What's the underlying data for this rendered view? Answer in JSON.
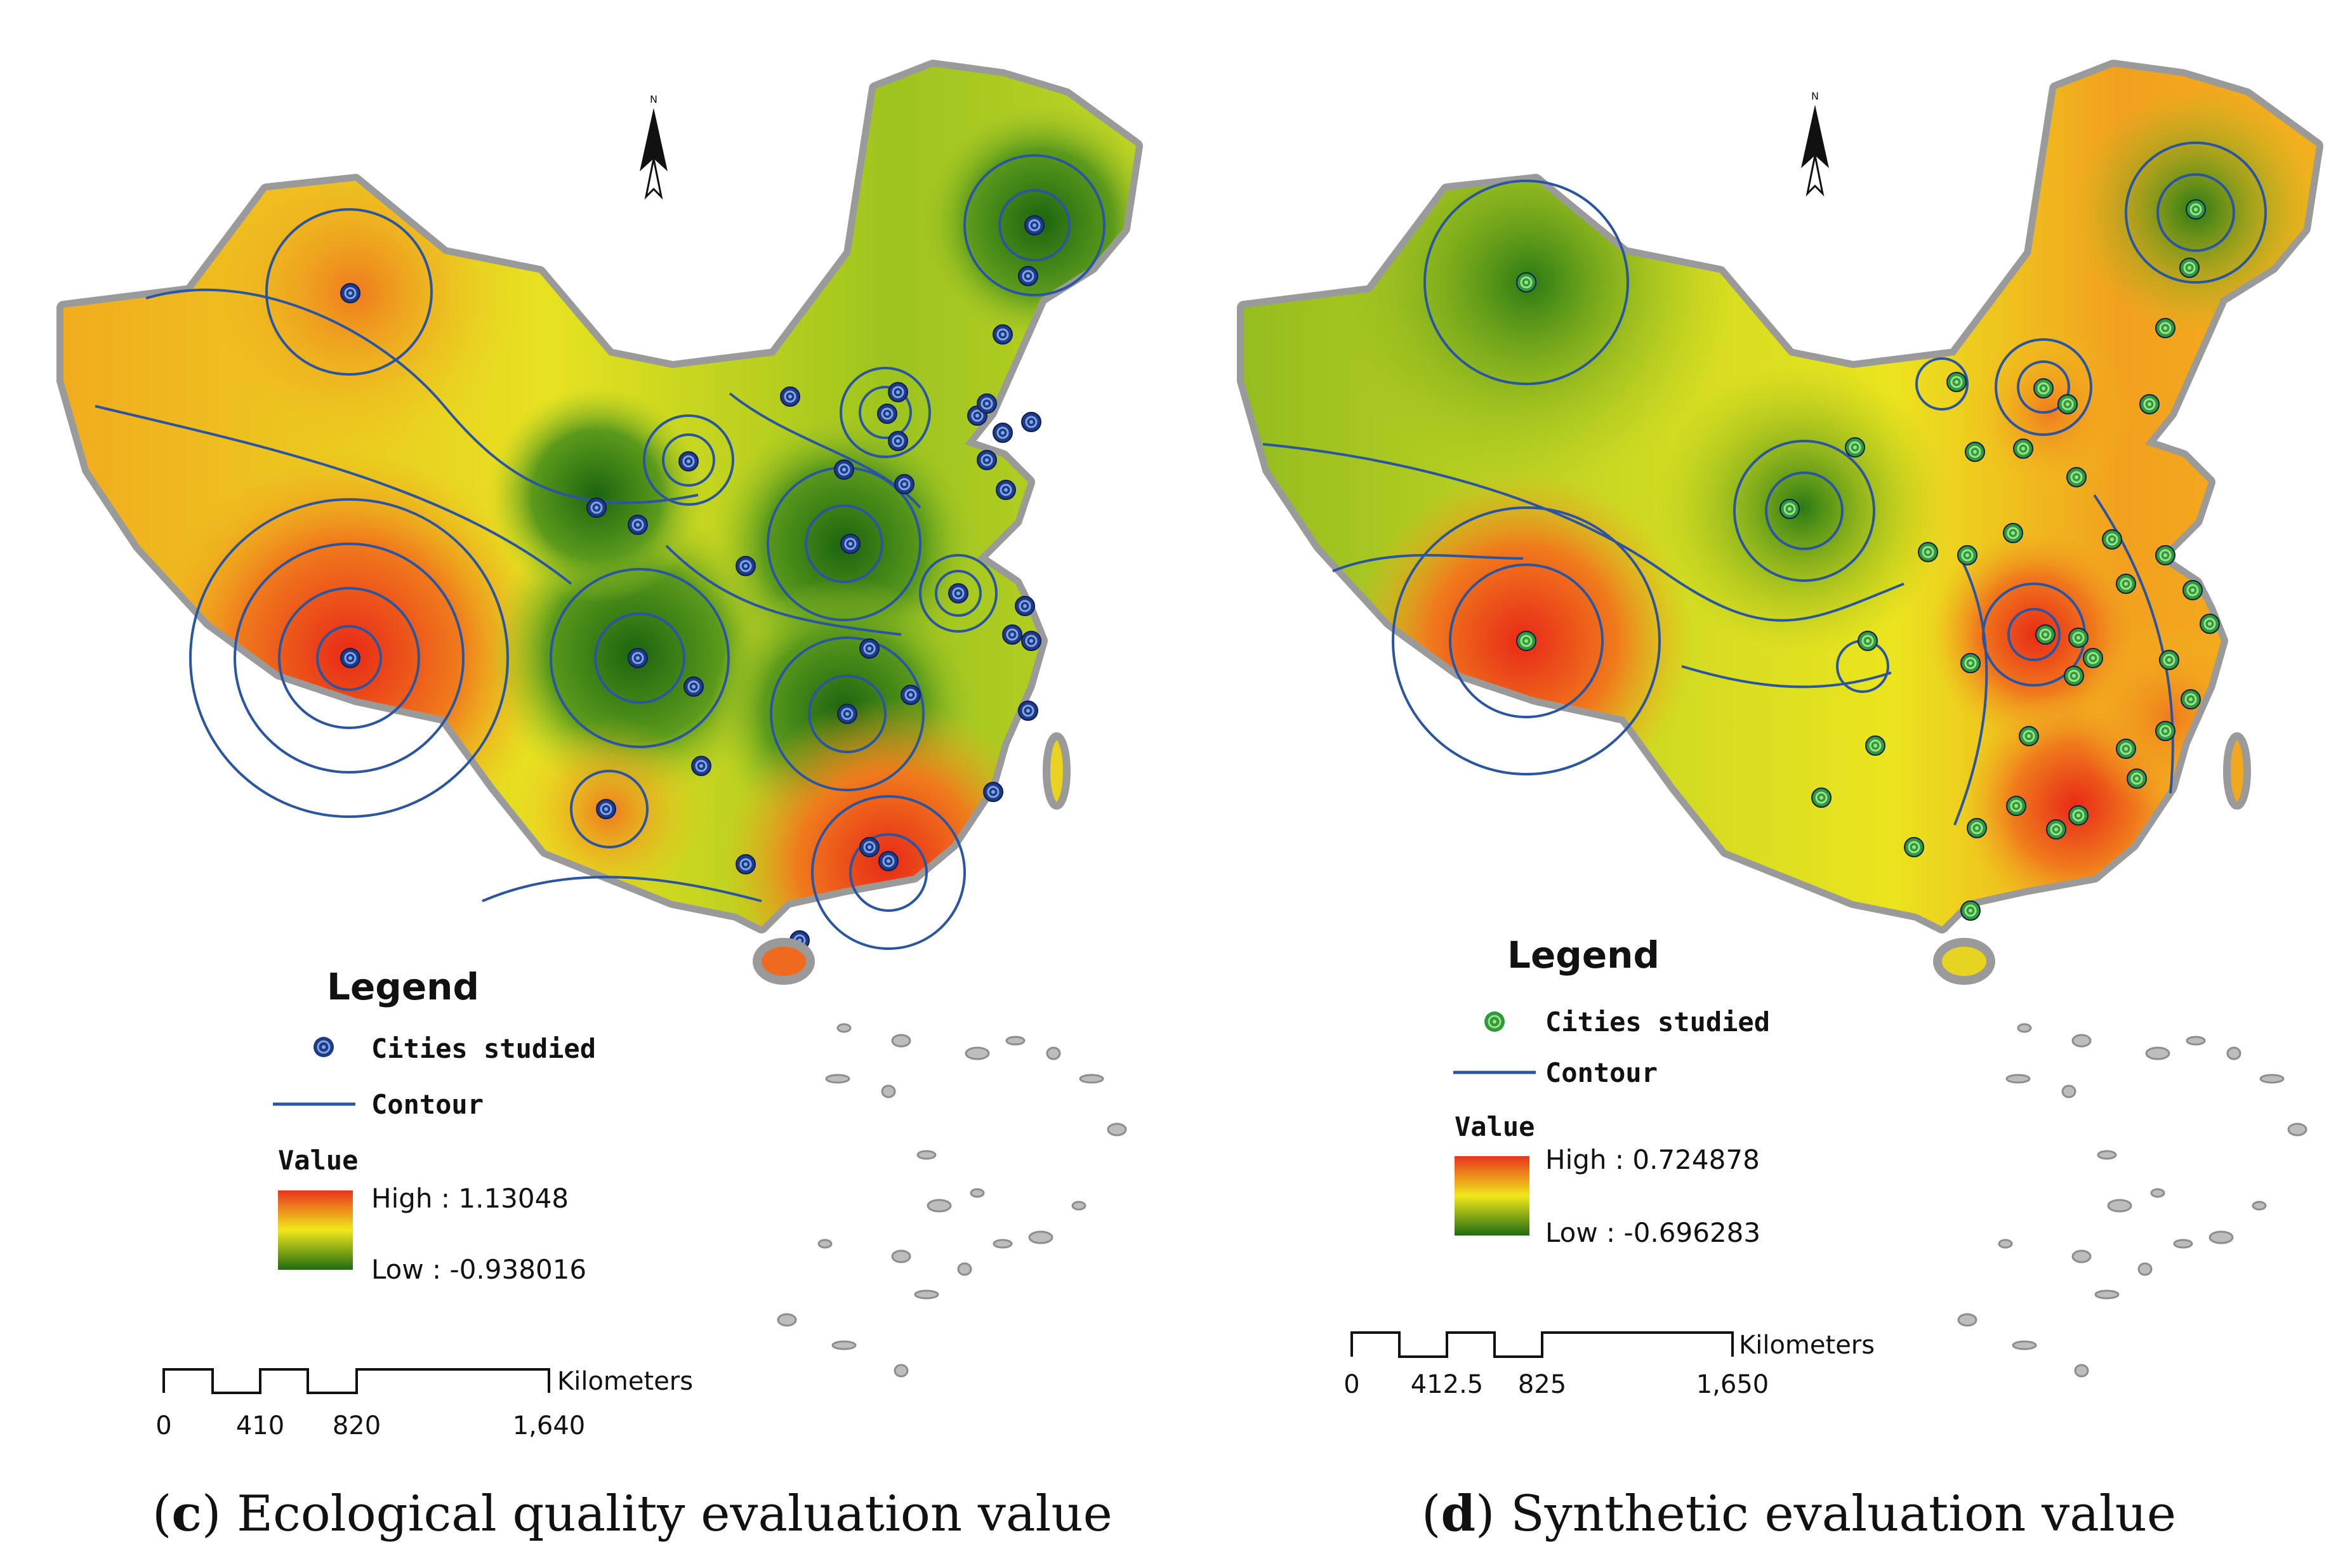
{
  "panels": [
    {
      "id": "c",
      "letter": "c",
      "title": "Ecological quality evaluation value",
      "legend": {
        "title": "Legend",
        "cities_label": "Cities studied",
        "contour_label": "Contour",
        "value_label": "Value",
        "high_label": "High : 1.13048",
        "low_label": "Low : -0.938016"
      },
      "scale": {
        "unit": "Kilometers",
        "ticks": [
          "0",
          "410",
          "820",
          "1,640"
        ]
      },
      "colors": {
        "city_fill": "#1f3a8a",
        "city_ring": "#7fa7e0"
      }
    },
    {
      "id": "d",
      "letter": "d",
      "title": "Synthetic evaluation value",
      "legend": {
        "title": "Legend",
        "cities_label": "Cities studied",
        "contour_label": "Contour",
        "value_label": "Value",
        "high_label": "High : 0.724878",
        "low_label": "Low : -0.696283"
      },
      "scale": {
        "unit": "Kilometers",
        "ticks": [
          "0",
          "412.5",
          "825",
          "1,650"
        ]
      },
      "colors": {
        "city_fill": "#2e9b3a",
        "city_ring": "#9fe08f"
      }
    }
  ],
  "north_arrow": {
    "label": "N"
  },
  "colors": {
    "high": "#e8341c",
    "mid": "#f0e81a",
    "low": "#1f6b12",
    "contour": "#2a55a0",
    "border": "#9a9a9a"
  }
}
